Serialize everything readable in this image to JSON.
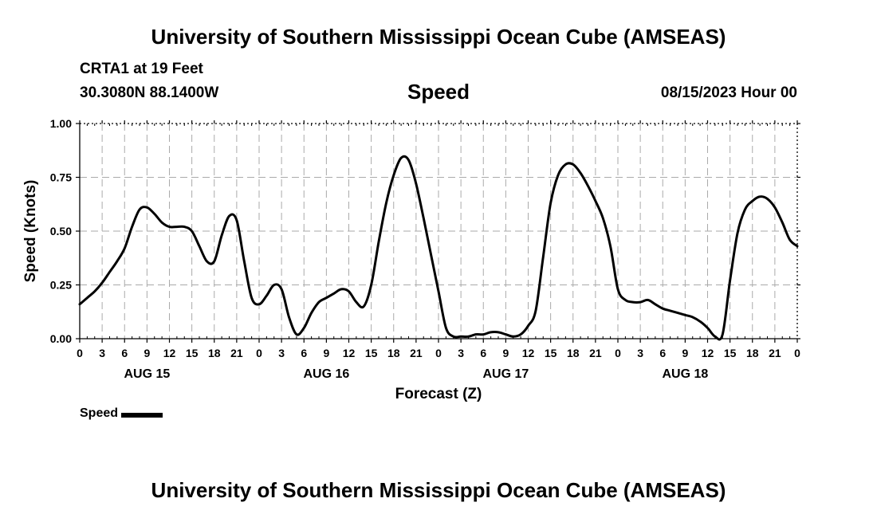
{
  "header": {
    "title": "University of Southern Mississippi Ocean Cube (AMSEAS)",
    "station": "CRTA1 at 19 Feet",
    "coords": "30.3080N  88.1400W",
    "heading": "Speed",
    "run": "08/15/2023 Hour 00"
  },
  "footer": {
    "title": "University of Southern Mississippi Ocean Cube (AMSEAS)"
  },
  "legend": {
    "label": "Speed"
  },
  "chart_data": {
    "type": "line",
    "title": "Speed",
    "xlabel": "Forecast (Z)",
    "ylabel": "Speed (Knots)",
    "xlim": [
      0,
      96
    ],
    "ylim": [
      0,
      1
    ],
    "grid": true,
    "legend_position": "bottom-left",
    "yticks": [
      0,
      0.25,
      0.5,
      0.75,
      1
    ],
    "y_tick_labels": [
      "0.00",
      "0.25",
      "0.50",
      "0.75",
      "1.00"
    ],
    "x_tick_labels": [
      "0",
      "3",
      "6",
      "9",
      "12",
      "15",
      "18",
      "21",
      "0",
      "3",
      "6",
      "9",
      "12",
      "15",
      "18",
      "21",
      "0",
      "3",
      "6",
      "9",
      "12",
      "15",
      "18",
      "21",
      "0",
      "3",
      "6",
      "9",
      "12",
      "15",
      "18",
      "21",
      "0"
    ],
    "date_labels": [
      {
        "label": "AUG 15",
        "hour": 9
      },
      {
        "label": "AUG 16",
        "hour": 33
      },
      {
        "label": "AUG 17",
        "hour": 57
      },
      {
        "label": "AUG 18",
        "hour": 81
      }
    ],
    "series": [
      {
        "name": "Speed",
        "color": "#000000",
        "x": [
          0,
          1,
          2,
          3,
          4,
          5,
          6,
          7,
          8,
          9,
          10,
          11,
          12,
          13,
          14,
          15,
          16,
          17,
          18,
          19,
          20,
          21,
          22,
          23,
          24,
          25,
          26,
          27,
          28,
          29,
          30,
          31,
          32,
          33,
          34,
          35,
          36,
          37,
          38,
          39,
          40,
          41,
          42,
          43,
          44,
          45,
          46,
          47,
          48,
          49,
          50,
          51,
          52,
          53,
          54,
          55,
          56,
          57,
          58,
          59,
          60,
          61,
          62,
          63,
          64,
          65,
          66,
          67,
          68,
          69,
          70,
          71,
          72,
          73,
          74,
          75,
          76,
          77,
          78,
          79,
          80,
          81,
          82,
          83,
          84,
          85,
          86,
          87,
          88,
          89,
          90,
          91,
          92,
          93,
          94,
          95,
          96
        ],
        "values": [
          0.16,
          0.19,
          0.22,
          0.26,
          0.31,
          0.36,
          0.42,
          0.52,
          0.6,
          0.61,
          0.58,
          0.54,
          0.52,
          0.52,
          0.52,
          0.5,
          0.43,
          0.36,
          0.36,
          0.48,
          0.57,
          0.55,
          0.36,
          0.19,
          0.16,
          0.2,
          0.25,
          0.23,
          0.1,
          0.02,
          0.05,
          0.12,
          0.17,
          0.19,
          0.21,
          0.23,
          0.22,
          0.17,
          0.15,
          0.25,
          0.45,
          0.63,
          0.76,
          0.84,
          0.83,
          0.72,
          0.56,
          0.39,
          0.22,
          0.05,
          0.01,
          0.01,
          0.01,
          0.02,
          0.02,
          0.03,
          0.03,
          0.02,
          0.01,
          0.02,
          0.06,
          0.13,
          0.38,
          0.63,
          0.76,
          0.81,
          0.81,
          0.77,
          0.71,
          0.64,
          0.56,
          0.43,
          0.23,
          0.18,
          0.17,
          0.17,
          0.18,
          0.16,
          0.14,
          0.13,
          0.12,
          0.11,
          0.1,
          0.08,
          0.05,
          0.01,
          0.02,
          0.27,
          0.49,
          0.6,
          0.64,
          0.66,
          0.65,
          0.61,
          0.54,
          0.46,
          0.43
        ]
      }
    ]
  }
}
